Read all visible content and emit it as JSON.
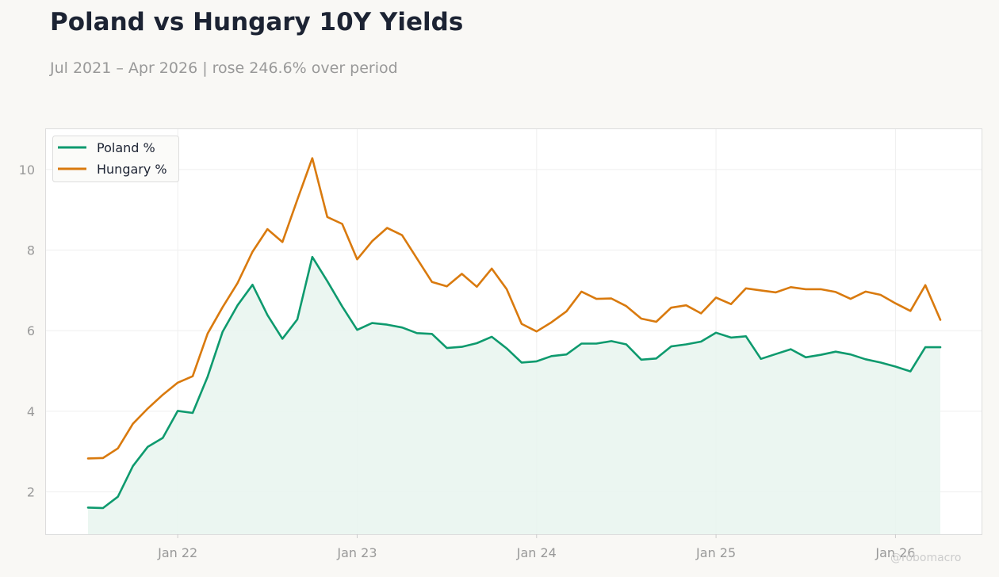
{
  "header": {
    "title": "Poland vs Hungary 10Y Yields",
    "subtitle": "Jul 2021 – Apr 2026 | rose 246.6% over period"
  },
  "watermark": "@robomacro",
  "colors": {
    "poland": "#0e9a6e",
    "hungary": "#d97a0e",
    "fill": "#e8f4ef",
    "background": "#f9f8f5",
    "plot_bg": "#ffffff",
    "grid": "#efefef",
    "tick_text": "#999999"
  },
  "chart_data": {
    "type": "line",
    "title": "Poland vs Hungary 10Y Yields",
    "subtitle": "Jul 2021 – Apr 2026 | rose 246.6% over period",
    "xlabel": "",
    "ylabel": "",
    "x_start": "2021-07",
    "x_end": "2026-04",
    "ylim": [
      0.95,
      11.0
    ],
    "yticks": [
      2,
      4,
      6,
      8,
      10
    ],
    "xticks": [
      {
        "date": "2022-01",
        "label": "Jan 22"
      },
      {
        "date": "2023-01",
        "label": "Jan 23"
      },
      {
        "date": "2024-01",
        "label": "Jan 24"
      },
      {
        "date": "2025-01",
        "label": "Jan 25"
      },
      {
        "date": "2026-01",
        "label": "Jan 26"
      }
    ],
    "grid": true,
    "legend_position": "top-left",
    "x": [
      "2021-07",
      "2021-08",
      "2021-09",
      "2021-10",
      "2021-11",
      "2021-12",
      "2022-01",
      "2022-02",
      "2022-03",
      "2022-04",
      "2022-05",
      "2022-06",
      "2022-07",
      "2022-08",
      "2022-09",
      "2022-10",
      "2022-11",
      "2022-12",
      "2023-01",
      "2023-02",
      "2023-03",
      "2023-04",
      "2023-05",
      "2023-06",
      "2023-07",
      "2023-08",
      "2023-09",
      "2023-10",
      "2023-11",
      "2023-12",
      "2024-01",
      "2024-02",
      "2024-03",
      "2024-04",
      "2024-05",
      "2024-06",
      "2024-07",
      "2024-08",
      "2024-09",
      "2024-10",
      "2024-11",
      "2024-12",
      "2025-01",
      "2025-02",
      "2025-03",
      "2025-04",
      "2025-05",
      "2025-06",
      "2025-07",
      "2025-08",
      "2025-09",
      "2025-10",
      "2025-11",
      "2025-12",
      "2026-01",
      "2026-02",
      "2026-03",
      "2026-04"
    ],
    "series": [
      {
        "name": "Poland %",
        "color": "#0e9a6e",
        "filled": true,
        "values": [
          1.61,
          1.6,
          1.88,
          2.64,
          3.12,
          3.34,
          4.01,
          3.96,
          4.86,
          5.97,
          6.63,
          7.14,
          6.39,
          5.8,
          6.28,
          7.83,
          7.23,
          6.6,
          6.02,
          6.19,
          6.15,
          6.08,
          5.94,
          5.92,
          5.57,
          5.6,
          5.69,
          5.85,
          5.56,
          5.21,
          5.24,
          5.37,
          5.41,
          5.68,
          5.68,
          5.74,
          5.66,
          5.28,
          5.31,
          5.61,
          5.66,
          5.73,
          5.95,
          5.83,
          5.86,
          5.3,
          5.42,
          5.54,
          5.34,
          5.4,
          5.48,
          5.41,
          5.29,
          5.21,
          5.11,
          4.99,
          5.59,
          5.59
        ]
      },
      {
        "name": "Hungary %",
        "color": "#d97a0e",
        "filled": false,
        "values": [
          2.83,
          2.84,
          3.08,
          3.69,
          4.07,
          4.41,
          4.71,
          4.87,
          5.93,
          6.58,
          7.18,
          7.96,
          8.52,
          8.2,
          9.25,
          10.28,
          8.82,
          8.65,
          7.77,
          8.22,
          8.55,
          8.37,
          7.79,
          7.21,
          7.1,
          7.41,
          7.09,
          7.54,
          7.03,
          6.17,
          5.98,
          6.21,
          6.48,
          6.97,
          6.79,
          6.8,
          6.61,
          6.3,
          6.22,
          6.57,
          6.63,
          6.43,
          6.82,
          6.66,
          7.05,
          7.0,
          6.95,
          7.08,
          7.03,
          7.03,
          6.96,
          6.79,
          6.97,
          6.89,
          6.68,
          6.49,
          7.13,
          6.27
        ]
      }
    ]
  }
}
